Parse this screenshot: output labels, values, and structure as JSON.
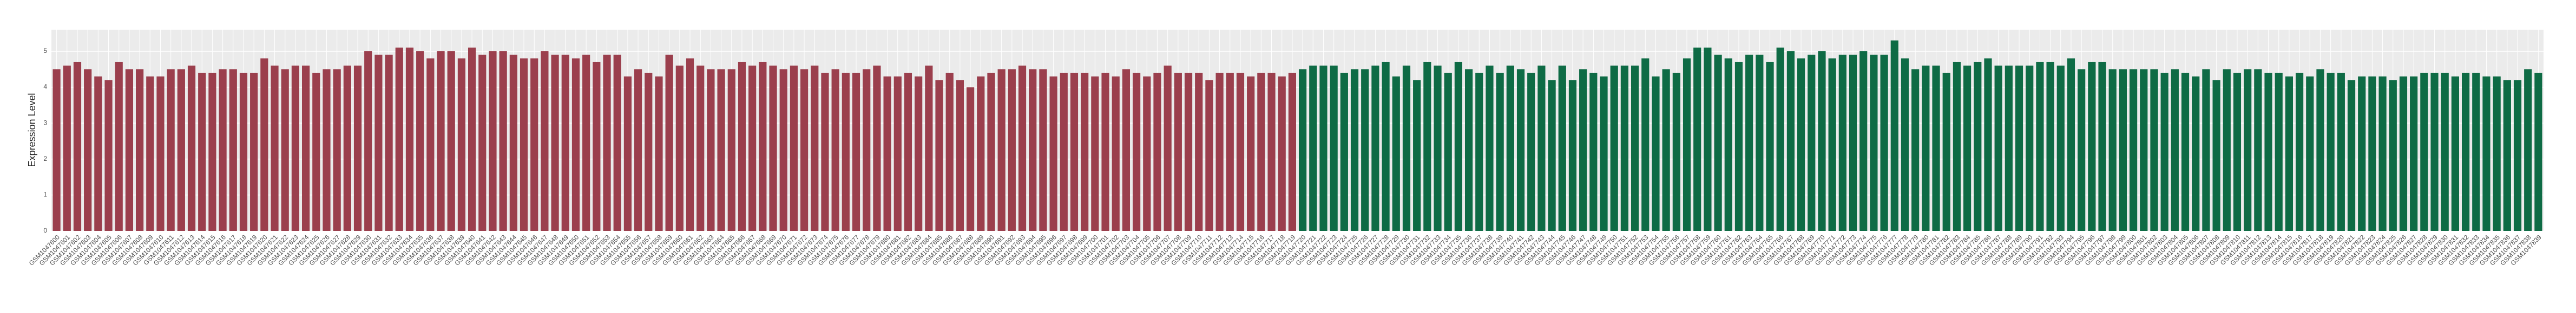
{
  "chart_data": {
    "type": "bar",
    "y_label": "Expression Level",
    "categories": [
      "GSM1047600",
      "GSM1047601",
      "GSM1047602",
      "GSM1047603",
      "GSM1047604",
      "GSM1047605",
      "GSM1047606",
      "GSM1047607",
      "GSM1047608",
      "GSM1047609",
      "GSM1047610",
      "GSM1047611",
      "GSM1047612",
      "GSM1047613",
      "GSM1047614",
      "GSM1047615",
      "GSM1047616",
      "GSM1047617",
      "GSM1047618",
      "GSM1047619",
      "GSM1047620",
      "GSM1047621",
      "GSM1047622",
      "GSM1047623",
      "GSM1047624",
      "GSM1047625",
      "GSM1047626",
      "GSM1047627",
      "GSM1047628",
      "GSM1047629",
      "GSM1047630",
      "GSM1047631",
      "GSM1047632",
      "GSM1047633",
      "GSM1047634",
      "GSM1047635",
      "GSM1047636",
      "GSM1047637",
      "GSM1047638",
      "GSM1047639",
      "GSM1047640",
      "GSM1047641",
      "GSM1047642",
      "GSM1047643",
      "GSM1047644",
      "GSM1047645",
      "GSM1047646",
      "GSM1047647",
      "GSM1047648",
      "GSM1047649",
      "GSM1047650",
      "GSM1047651",
      "GSM1047652",
      "GSM1047653",
      "GSM1047654",
      "GSM1047655",
      "GSM1047656",
      "GSM1047657",
      "GSM1047658",
      "GSM1047659",
      "GSM1047660",
      "GSM1047661",
      "GSM1047662",
      "GSM1047663",
      "GSM1047664",
      "GSM1047665",
      "GSM1047666",
      "GSM1047667",
      "GSM1047668",
      "GSM1047669",
      "GSM1047670",
      "GSM1047671",
      "GSM1047672",
      "GSM1047673",
      "GSM1047674",
      "GSM1047675",
      "GSM1047676",
      "GSM1047677",
      "GSM1047678",
      "GSM1047679",
      "GSM1047680",
      "GSM1047681",
      "GSM1047682",
      "GSM1047683",
      "GSM1047684",
      "GSM1047685",
      "GSM1047686",
      "GSM1047687",
      "GSM1047688",
      "GSM1047689",
      "GSM1047690",
      "GSM1047691",
      "GSM1047692",
      "GSM1047693",
      "GSM1047694",
      "GSM1047695",
      "GSM1047696",
      "GSM1047697",
      "GSM1047698",
      "GSM1047699",
      "GSM1047700",
      "GSM1047701",
      "GSM1047702",
      "GSM1047703",
      "GSM1047704",
      "GSM1047705",
      "GSM1047706",
      "GSM1047707",
      "GSM1047708",
      "GSM1047709",
      "GSM1047710",
      "GSM1047711",
      "GSM1047712",
      "GSM1047713",
      "GSM1047714",
      "GSM1047715",
      "GSM1047716",
      "GSM1047717",
      "GSM1047718",
      "GSM1047719",
      "GSM1047720",
      "GSM1047721",
      "GSM1047722",
      "GSM1047723",
      "GSM1047724",
      "GSM1047725",
      "GSM1047726",
      "GSM1047727",
      "GSM1047728",
      "GSM1047729",
      "GSM1047730",
      "GSM1047731",
      "GSM1047732",
      "GSM1047733",
      "GSM1047734",
      "GSM1047735",
      "GSM1047736",
      "GSM1047737",
      "GSM1047738",
      "GSM1047739",
      "GSM1047740",
      "GSM1047741",
      "GSM1047742",
      "GSM1047743",
      "GSM1047744",
      "GSM1047745",
      "GSM1047746",
      "GSM1047747",
      "GSM1047748",
      "GSM1047749",
      "GSM1047750",
      "GSM1047751",
      "GSM1047752",
      "GSM1047753",
      "GSM1047754",
      "GSM1047755",
      "GSM1047756",
      "GSM1047757",
      "GSM1047758",
      "GSM1047759",
      "GSM1047760",
      "GSM1047761",
      "GSM1047762",
      "GSM1047763",
      "GSM1047764",
      "GSM1047765",
      "GSM1047766",
      "GSM1047767",
      "GSM1047768",
      "GSM1047769",
      "GSM1047770",
      "GSM1047771",
      "GSM1047772",
      "GSM1047773",
      "GSM1047774",
      "GSM1047775",
      "GSM1047776",
      "GSM1047777",
      "GSM1047778",
      "GSM1047779",
      "GSM1047780",
      "GSM1047781",
      "GSM1047782",
      "GSM1047783",
      "GSM1047784",
      "GSM1047785",
      "GSM1047786",
      "GSM1047787",
      "GSM1047788",
      "GSM1047789",
      "GSM1047790",
      "GSM1047791",
      "GSM1047792",
      "GSM1047793",
      "GSM1047794",
      "GSM1047795",
      "GSM1047796",
      "GSM1047797",
      "GSM1047798",
      "GSM1047799",
      "GSM1047800",
      "GSM1047801",
      "GSM1047802",
      "GSM1047803",
      "GSM1047804",
      "GSM1047805",
      "GSM1047806",
      "GSM1047807",
      "GSM1047808",
      "GSM1047809",
      "GSM1047810",
      "GSM1047811",
      "GSM1047812",
      "GSM1047813",
      "GSM1047814",
      "GSM1047815",
      "GSM1047816",
      "GSM1047817",
      "GSM1047818",
      "GSM1047819",
      "GSM1047820",
      "GSM1047821",
      "GSM1047822",
      "GSM1047823",
      "GSM1047824",
      "GSM1047825",
      "GSM1047826",
      "GSM1047827",
      "GSM1047828",
      "GSM1047829",
      "GSM1047830",
      "GSM1047831",
      "GSM1047832",
      "GSM1047833",
      "GSM1047834",
      "GSM1047835",
      "GSM1047836",
      "GSM1047837",
      "GSM1047838",
      "GSM1047839"
    ],
    "series": [
      {
        "color": "#9b3f4d",
        "values": [
          4.5,
          4.6,
          4.7,
          4.5,
          4.3,
          4.2,
          4.7,
          4.5,
          4.5,
          4.3,
          4.3,
          4.5,
          4.5,
          4.6,
          4.4,
          4.4,
          4.5,
          4.5,
          4.4,
          4.4,
          4.8,
          4.6,
          4.5,
          4.6,
          4.6,
          4.4,
          4.5,
          4.5,
          4.6,
          4.6,
          5.0,
          4.9,
          4.9,
          5.1,
          5.1,
          5.0,
          4.8,
          5.0,
          5.0,
          4.8,
          5.1,
          4.9,
          5.0,
          5.0,
          4.9,
          4.8,
          4.8,
          5.0,
          4.9,
          4.9,
          4.8,
          4.9,
          4.7,
          4.9,
          4.9,
          4.3,
          4.5,
          4.4,
          4.3,
          4.9,
          4.6,
          4.8,
          4.6,
          4.5,
          4.5,
          4.5,
          4.7,
          4.6,
          4.7,
          4.6,
          4.5,
          4.6,
          4.5,
          4.6,
          4.4,
          4.5,
          4.4,
          4.4,
          4.5,
          4.6,
          4.3,
          4.3,
          4.4,
          4.3,
          4.6,
          4.2,
          4.4,
          4.2,
          4.0,
          4.3,
          4.4,
          4.5,
          4.5,
          4.6,
          4.5,
          4.5,
          4.3,
          4.4,
          4.4,
          4.4,
          4.3,
          4.4,
          4.3,
          4.5,
          4.4,
          4.3,
          4.4,
          4.6,
          4.4,
          4.4,
          4.4,
          4.2,
          4.4,
          4.4,
          4.4,
          4.3,
          4.4,
          4.4,
          4.3,
          4.4,
          null,
          null,
          null,
          null,
          null,
          null,
          null,
          null,
          null,
          null,
          null,
          null,
          null,
          null,
          null,
          null,
          null,
          null,
          null,
          null,
          null,
          null,
          null,
          null,
          null,
          null,
          null,
          null,
          null,
          null,
          null,
          null,
          null,
          null,
          null,
          null,
          null,
          null,
          null,
          null,
          null,
          null,
          null,
          null,
          null,
          null,
          null,
          null,
          null,
          null,
          null,
          null,
          null,
          null,
          null,
          null,
          null,
          null,
          null,
          null,
          null,
          null,
          null,
          null,
          null,
          null,
          null,
          null,
          null,
          null,
          null,
          null,
          null,
          null,
          null,
          null,
          null,
          null,
          null,
          null,
          null,
          null,
          null,
          null,
          null,
          null,
          null,
          null,
          null,
          null,
          null,
          null,
          null,
          null,
          null,
          null,
          null,
          null,
          null,
          null,
          null,
          null,
          null,
          null,
          null,
          null,
          null,
          null,
          null,
          null,
          null,
          null,
          null,
          null,
          null,
          null,
          null,
          null,
          null,
          null
        ]
      },
      {
        "color": "#0e6b45",
        "values": [
          null,
          null,
          null,
          null,
          null,
          null,
          null,
          null,
          null,
          null,
          null,
          null,
          null,
          null,
          null,
          null,
          null,
          null,
          null,
          null,
          null,
          null,
          null,
          null,
          null,
          null,
          null,
          null,
          null,
          null,
          null,
          null,
          null,
          null,
          null,
          null,
          null,
          null,
          null,
          null,
          null,
          null,
          null,
          null,
          null,
          null,
          null,
          null,
          null,
          null,
          null,
          null,
          null,
          null,
          null,
          null,
          null,
          null,
          null,
          null,
          null,
          null,
          null,
          null,
          null,
          null,
          null,
          null,
          null,
          null,
          null,
          null,
          null,
          null,
          null,
          null,
          null,
          null,
          null,
          null,
          null,
          null,
          null,
          null,
          null,
          null,
          null,
          null,
          null,
          null,
          null,
          null,
          null,
          null,
          null,
          null,
          null,
          null,
          null,
          null,
          null,
          null,
          null,
          null,
          null,
          null,
          null,
          null,
          null,
          null,
          null,
          null,
          null,
          null,
          null,
          null,
          null,
          null,
          null,
          null,
          4.5,
          4.6,
          4.6,
          4.6,
          4.4,
          4.5,
          4.5,
          4.6,
          4.7,
          4.3,
          4.6,
          4.2,
          4.7,
          4.6,
          4.4,
          4.7,
          4.5,
          4.4,
          4.6,
          4.4,
          4.6,
          4.5,
          4.4,
          4.6,
          4.2,
          4.6,
          4.2,
          4.5,
          4.4,
          4.3,
          4.6,
          4.6,
          4.6,
          4.8,
          4.3,
          4.5,
          4.4,
          4.8,
          5.1,
          5.1,
          4.9,
          4.8,
          4.7,
          4.9,
          4.9,
          4.7,
          5.1,
          5.0,
          4.8,
          4.9,
          5.0,
          4.8,
          4.9,
          4.9,
          5.0,
          4.9,
          4.9,
          5.3,
          4.8,
          4.5,
          4.6,
          4.6,
          4.4,
          4.7,
          4.6,
          4.7,
          4.8,
          4.6,
          4.6,
          4.6,
          4.6,
          4.7,
          4.7,
          4.6,
          4.8,
          4.5,
          4.7,
          4.7,
          4.5,
          4.5,
          4.5,
          4.5,
          4.5,
          4.4,
          4.5,
          4.4,
          4.3,
          4.5,
          4.2,
          4.5,
          4.4,
          4.5,
          4.5,
          4.4,
          4.4,
          4.3,
          4.4,
          4.3,
          4.5,
          4.4,
          4.4,
          4.2,
          4.3,
          4.3,
          4.3,
          4.2,
          4.3,
          4.3,
          4.4,
          4.4,
          4.4,
          4.3,
          4.4,
          4.4,
          4.3,
          4.3,
          4.2,
          4.2,
          4.5,
          4.4
        ]
      }
    ],
    "ylim": [
      0,
      5.6
    ],
    "yticks": [
      0,
      1,
      2,
      3,
      4,
      5
    ],
    "grid": true
  }
}
